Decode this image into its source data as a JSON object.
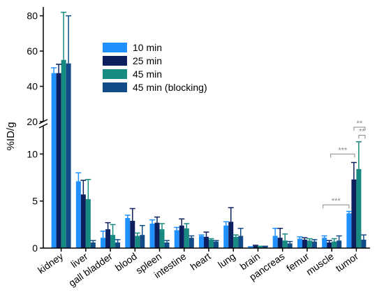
{
  "chart_data": {
    "type": "bar",
    "title": "",
    "xlabel": "",
    "ylabel": "%ID/g",
    "axis_break": {
      "lower_max": 13,
      "upper_min": 20,
      "upper_max": 85
    },
    "ylim": [
      0,
      85
    ],
    "yticks": [
      0,
      5,
      10,
      20,
      40,
      60,
      80
    ],
    "grid": false,
    "legend_position": "top-center",
    "categories": [
      "kidney",
      "liver",
      "gall bladder",
      "blood",
      "spleen",
      "intestine",
      "heart",
      "lung",
      "brain",
      "pancreas",
      "femur",
      "muscle",
      "tumor"
    ],
    "series": [
      {
        "name": "10 min",
        "color": "#1e90ff",
        "values": [
          47.5,
          7.1,
          1.1,
          3.2,
          2.6,
          1.9,
          1.3,
          2.4,
          0.1,
          1.3,
          1.0,
          1.1,
          3.7
        ],
        "errors": [
          3.0,
          0.9,
          0.7,
          0.3,
          0.4,
          0.3,
          0.1,
          0.4,
          0.05,
          0.8,
          0.2,
          0.2,
          0.2
        ]
      },
      {
        "name": "25 min",
        "color": "#0d1f5e",
        "values": [
          47.5,
          5.7,
          2.0,
          2.9,
          2.7,
          2.4,
          1.2,
          2.8,
          0.25,
          1.1,
          0.9,
          0.6,
          7.3
        ],
        "errors": [
          5.0,
          1.5,
          0.7,
          1.3,
          0.6,
          0.7,
          0.5,
          1.5,
          0.05,
          1.0,
          0.2,
          0.2,
          1.8
        ]
      },
      {
        "name": "45 min",
        "color": "#178a82",
        "values": [
          55.0,
          5.2,
          1.4,
          1.3,
          2.0,
          2.1,
          0.9,
          1.2,
          0.15,
          0.8,
          0.8,
          0.7,
          8.4
        ],
        "errors": [
          27.0,
          2.1,
          1.1,
          0.3,
          0.6,
          0.5,
          0.1,
          0.2,
          0.05,
          0.7,
          0.2,
          0.3,
          2.9
        ]
      },
      {
        "name": "45 min (blocking)",
        "color": "#124c88",
        "values": [
          53.0,
          0.6,
          0.6,
          1.4,
          0.6,
          1.1,
          0.7,
          1.3,
          0.15,
          0.5,
          0.7,
          0.8,
          0.9
        ],
        "errors": [
          27.0,
          0.2,
          0.3,
          1.0,
          0.2,
          0.2,
          0.1,
          0.8,
          0.05,
          0.2,
          0.2,
          0.5,
          0.5
        ]
      }
    ],
    "annotations": [
      {
        "text": "***",
        "from_series": 0,
        "to_series": 1,
        "category": "muscle/tumor"
      },
      {
        "text": "***",
        "from_series": 1,
        "to_series": 2,
        "category": "tumor"
      },
      {
        "text": "**",
        "from_series": 2,
        "to_series": 3,
        "category": "tumor"
      },
      {
        "text": "**",
        "from_series": 1,
        "to_series": 3,
        "category": "tumor"
      }
    ],
    "yticklabels": {
      "0": "0",
      "5": "5",
      "10": "10",
      "20": "20",
      "40": "40",
      "60": "60",
      "80": "80"
    }
  }
}
